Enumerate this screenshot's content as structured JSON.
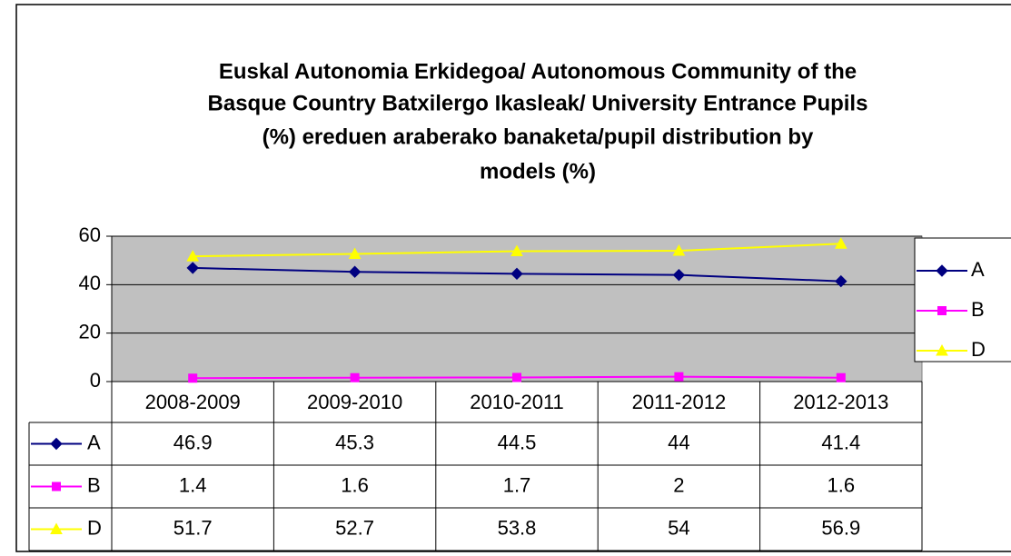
{
  "chart_data": {
    "type": "line",
    "title": [
      "Euskal Autonomia Erkidegoa/ Autonomous Community  of the",
      "Basque Country Batxilergo Ikasleak/ University Entrance Pupils",
      "(%) ereduen araberako banaketa/pupil distribution by",
      "models (%)"
    ],
    "categories": [
      "2008-2009",
      "2009-2010",
      "2010-2011",
      "2011-2012",
      "2012-2013"
    ],
    "series": [
      {
        "name": "A",
        "color": "#000080",
        "marker": "diamond",
        "values": [
          46.9,
          45.3,
          44.5,
          44,
          41.4
        ]
      },
      {
        "name": "B",
        "color": "#ff00ff",
        "marker": "square",
        "values": [
          1.4,
          1.6,
          1.7,
          2,
          1.6
        ]
      },
      {
        "name": "D",
        "color": "#ffff00",
        "marker": "triangle",
        "values": [
          51.7,
          52.7,
          53.8,
          54,
          56.9
        ]
      }
    ],
    "ylim": [
      0,
      60
    ],
    "yticks": [
      0,
      20,
      40,
      60
    ],
    "grid": true,
    "legend": "right",
    "data_table": true
  }
}
